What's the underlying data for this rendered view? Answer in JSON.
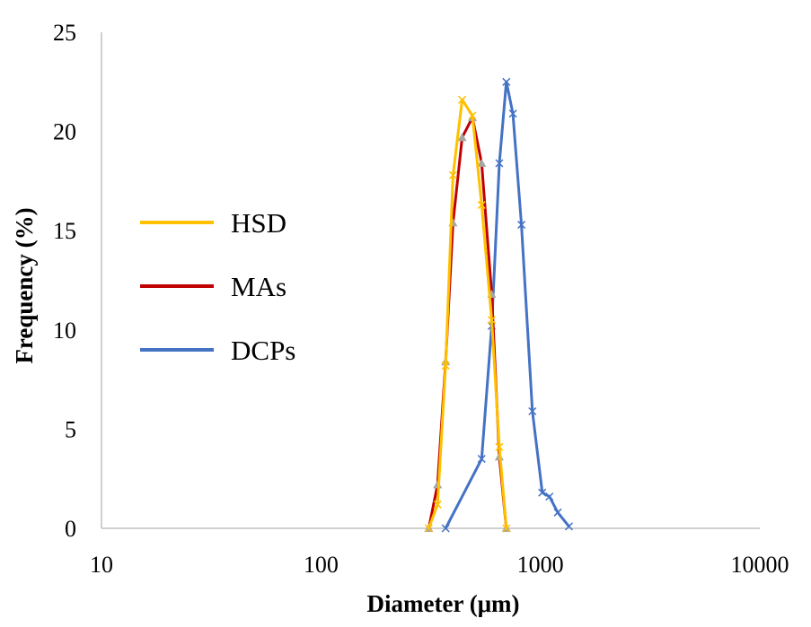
{
  "chart_data": {
    "type": "line",
    "title": "",
    "xlabel": "Diameter (μm)",
    "ylabel": "Frequency (%)",
    "x_scale": "log",
    "xlim": [
      10,
      10000
    ],
    "ylim": [
      0,
      25
    ],
    "x_ticks": [
      10,
      100,
      1000,
      10000
    ],
    "x_tick_labels": [
      "10",
      "100",
      "1000",
      "10000"
    ],
    "y_ticks": [
      0,
      5,
      10,
      15,
      20,
      25
    ],
    "y_tick_labels": [
      "0",
      "5",
      "10",
      "15",
      "20",
      "25"
    ],
    "grid": false,
    "legend_position": "left",
    "series": [
      {
        "name": "HSD",
        "color": "#FFC000",
        "marker": "x",
        "x": [
          310,
          340,
          370,
          400,
          440,
          490,
          540,
          600,
          650,
          700
        ],
        "y": [
          0,
          1.2,
          8.2,
          17.8,
          21.6,
          20.8,
          16.3,
          10.5,
          4.1,
          0
        ]
      },
      {
        "name": "MAs",
        "color": "#C00000",
        "marker": "triangle",
        "x": [
          310,
          340,
          370,
          400,
          440,
          490,
          540,
          600,
          650,
          700
        ],
        "y": [
          0,
          2.2,
          8.4,
          15.4,
          19.7,
          20.7,
          18.4,
          11.8,
          3.6,
          0
        ]
      },
      {
        "name": "DCPs",
        "color": "#4472C4",
        "marker": "x",
        "x": [
          370,
          540,
          600,
          650,
          700,
          750,
          820,
          920,
          1020,
          1100,
          1200,
          1350
        ],
        "y": [
          0,
          3.5,
          10.2,
          18.4,
          22.5,
          20.9,
          15.3,
          5.9,
          1.8,
          1.6,
          0.8,
          0.1
        ]
      }
    ]
  }
}
